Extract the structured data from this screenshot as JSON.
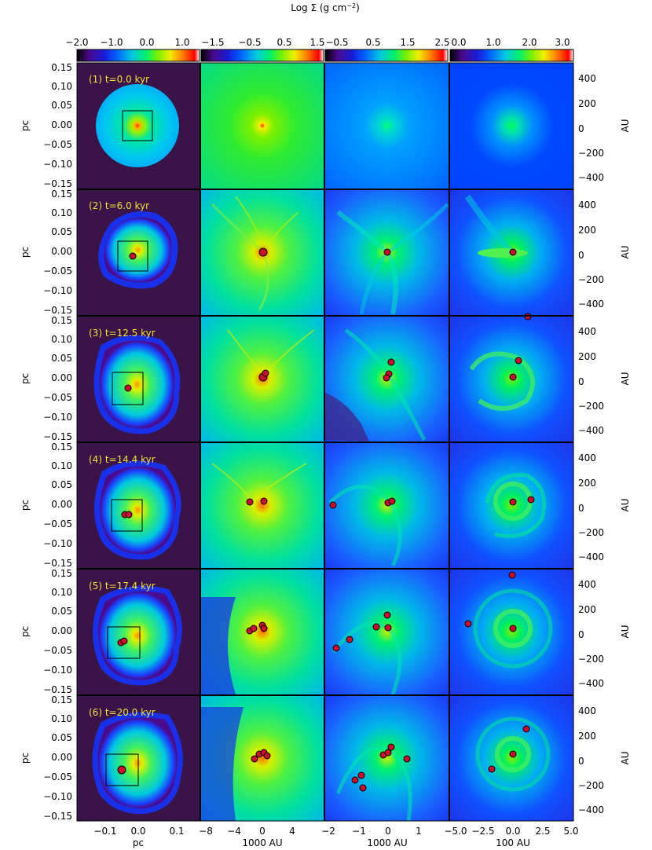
{
  "figure": {
    "colorbar_title": "Log Σ (g cm",
    "colorbar_title_exp": "−2",
    "colorbar_title_close": ")",
    "colorbars": [
      {
        "ticks": [
          "−2.0",
          "−1.0",
          "0.0",
          "1.0"
        ],
        "range": [
          -2.0,
          1.5
        ]
      },
      {
        "ticks": [
          "−1.5",
          "−0.5",
          "0.5",
          "1.5"
        ],
        "range": [
          -1.5,
          2.0
        ]
      },
      {
        "ticks": [
          "−0.5",
          "0.5",
          "1.5",
          "2.5"
        ],
        "range": [
          -0.5,
          3.0
        ]
      },
      {
        "ticks": [
          "0.0",
          "1.0",
          "2.0",
          "3.0"
        ],
        "range": [
          0.0,
          3.5
        ]
      }
    ],
    "left_axis_label": "pc",
    "left_axis_ticks": [
      "0.15",
      "0.10",
      "0.05",
      "0.00",
      "−0.05",
      "−0.10",
      "−0.15"
    ],
    "right_axis_label": "AU",
    "right_axis_ticks": [
      "400",
      "200",
      "0",
      "−200",
      "−400"
    ],
    "bottom_axes": [
      {
        "ticks": [
          "−0.1",
          "0.0",
          "0.1"
        ],
        "label": "pc"
      },
      {
        "ticks": [
          "−8",
          "−4",
          "0",
          "4"
        ],
        "label": "1000 AU"
      },
      {
        "ticks": [
          "−2",
          "−1",
          "0",
          "1"
        ],
        "label": "1000 AU"
      },
      {
        "ticks": [
          "−5.0",
          "−2.5",
          "0.0",
          "2.5",
          "5.0"
        ],
        "label": "100 AU"
      }
    ],
    "rows": [
      {
        "label": "(1) t=0.0 kyr"
      },
      {
        "label": "(2) t=6.0 kyr"
      },
      {
        "label": "(3) t=12.5 kyr"
      },
      {
        "label": "(4) t=14.4 kyr"
      },
      {
        "label": "(5) t=17.4 kyr"
      },
      {
        "label": "(6) t=20.0 kyr"
      }
    ],
    "colors": {
      "label_yellow": "#f2e23a",
      "sink_fill": "#c8102e",
      "background_purple": "#3a1448",
      "colormap": [
        "#000000",
        "#4a0a8c",
        "#1a1ad8",
        "#0060ff",
        "#00c8e0",
        "#00f070",
        "#78f000",
        "#f0f000",
        "#ff8000",
        "#ff0000",
        "#ffffff"
      ]
    }
  }
}
